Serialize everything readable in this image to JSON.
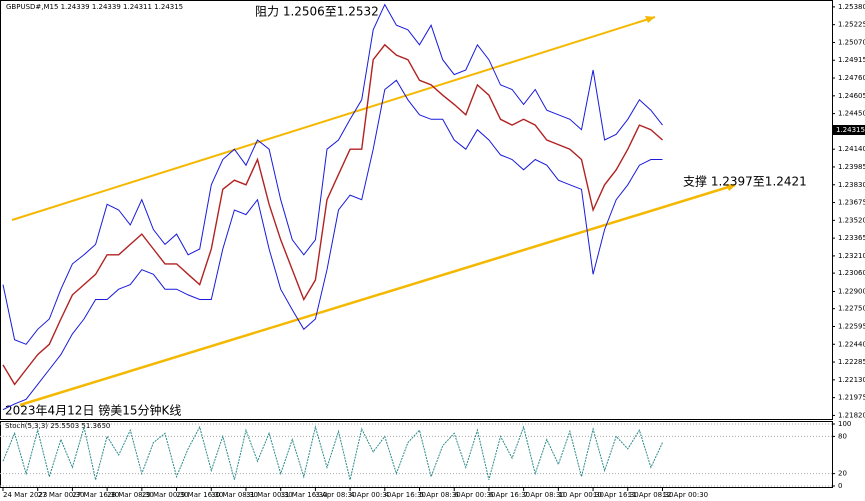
{
  "chart_data": [
    {
      "type": "line",
      "title": "GBPUSD#,M15  1.24339 1.24339 1.24311 1.24315",
      "caption": "2023年4月12日 镑美15分钟K线",
      "annotations": [
        "阻力 1.2506至1.2532",
        "支撑 1.2397至1.2421"
      ],
      "last_price_label": "1.24315",
      "categories": [
        "24 Mar 2023",
        null,
        null,
        "27 Mar 00:30",
        null,
        null,
        "27 Mar 16:30",
        null,
        null,
        "28 Mar 08:30",
        null,
        null,
        "29 Mar 00:30",
        null,
        null,
        "29 Mar 16:30",
        null,
        null,
        "30 Mar 08:30",
        null,
        null,
        "31 Mar 00:30",
        null,
        null,
        "31 Mar 16:30",
        null,
        null,
        "3 Apr 08:30",
        null,
        null,
        "4 Apr 00:30",
        null,
        null,
        "4 Apr 16:30",
        null,
        null,
        "5 Apr 08:30",
        null,
        null,
        "6 Apr 00:30",
        null,
        null,
        "6 Apr 16:30",
        null,
        null,
        "7 Apr 08:30",
        null,
        null,
        "10 Apr 00:30",
        null,
        null,
        "10 Apr 16:30",
        null,
        null,
        "11 Apr 08:30",
        null,
        null,
        "12 Apr 00:30"
      ],
      "series": [
        {
          "name": "GBPUSD#",
          "color": "#b22222",
          "values": [
            1.2226,
            1.2209,
            1.2222,
            1.2235,
            1.2244,
            1.2266,
            1.2287,
            1.2296,
            1.2305,
            1.2322,
            1.2322,
            1.2331,
            1.234,
            1.2327,
            1.2314,
            1.2314,
            1.2305,
            1.2296,
            1.2327,
            1.2379,
            1.2387,
            1.2383,
            1.2405,
            1.2366,
            1.2335,
            1.2309,
            1.2283,
            1.23,
            1.237,
            1.2392,
            1.2414,
            1.2414,
            1.2492,
            1.2505,
            1.2496,
            1.2492,
            1.2474,
            1.247,
            1.2461,
            1.2453,
            1.2444,
            1.247,
            1.2461,
            1.244,
            1.2435,
            1.244,
            1.2435,
            1.2422,
            1.2418,
            1.2414,
            1.2405,
            1.2361,
            1.2383,
            1.2396,
            1.2414,
            1.2435,
            1.2431,
            1.2422
          ]
        },
        {
          "name": "Upper",
          "color": "#1a1adc",
          "values": [
            1.2296,
            1.2248,
            1.2244,
            1.2257,
            1.2266,
            1.2292,
            1.2314,
            1.2322,
            1.2331,
            1.2366,
            1.2361,
            1.2348,
            1.237,
            1.2344,
            1.2331,
            1.234,
            1.2322,
            1.2327,
            1.2383,
            1.2405,
            1.2414,
            1.24,
            1.2422,
            1.2414,
            1.237,
            1.2335,
            1.2322,
            1.2335,
            1.2414,
            1.2422,
            1.244,
            1.2457,
            1.2518,
            1.254,
            1.2522,
            1.2518,
            1.2505,
            1.2522,
            1.2492,
            1.2479,
            1.2483,
            1.2505,
            1.2492,
            1.247,
            1.2466,
            1.2453,
            1.2466,
            1.2448,
            1.2444,
            1.244,
            1.2431,
            1.2483,
            1.2422,
            1.2427,
            1.244,
            1.2457,
            1.2448,
            1.2435
          ]
        },
        {
          "name": "Lower",
          "color": "#1a1adc",
          "values": [
            1.2187,
            1.2192,
            1.2196,
            1.2209,
            1.2222,
            1.2235,
            1.2253,
            1.2266,
            1.2283,
            1.2283,
            1.2292,
            1.2296,
            1.2309,
            1.2305,
            1.2292,
            1.2292,
            1.2287,
            1.2283,
            1.2283,
            1.2327,
            1.2361,
            1.2357,
            1.237,
            1.2327,
            1.2292,
            1.2274,
            1.2257,
            1.2266,
            1.2309,
            1.2361,
            1.2374,
            1.237,
            1.2414,
            1.2466,
            1.2474,
            1.2457,
            1.2444,
            1.244,
            1.244,
            1.2422,
            1.2414,
            1.2431,
            1.2422,
            1.2409,
            1.2405,
            1.2396,
            1.2405,
            1.24,
            1.2387,
            1.2383,
            1.2379,
            1.2305,
            1.2344,
            1.237,
            1.2383,
            1.24,
            1.2405,
            1.2405
          ]
        }
      ],
      "ylim": [
        1.2178,
        1.2544
      ],
      "yticks": [
        {
          "value": 1.2538,
          "label": "1.25380"
        },
        {
          "value": 1.25225,
          "label": "1.25225"
        },
        {
          "value": 1.2507,
          "label": "1.25070"
        },
        {
          "value": 1.24915,
          "label": "1.24915"
        },
        {
          "value": 1.2476,
          "label": "1.24760"
        },
        {
          "value": 1.24605,
          "label": "1.24605"
        },
        {
          "value": 1.2445,
          "label": "1.24450"
        },
        {
          "value": 1.2414,
          "label": "1.24140"
        },
        {
          "value": 1.23985,
          "label": "1.23985"
        },
        {
          "value": 1.2383,
          "label": "1.23830"
        },
        {
          "value": 1.23675,
          "label": "1.23675"
        },
        {
          "value": 1.2352,
          "label": "1.23520"
        },
        {
          "value": 1.23365,
          "label": "1.23365"
        },
        {
          "value": 1.2321,
          "label": "1.23210"
        },
        {
          "value": 1.2306,
          "label": "1.23060"
        },
        {
          "value": 1.229,
          "label": "1.22900"
        },
        {
          "value": 1.2275,
          "label": "1.22750"
        },
        {
          "value": 1.22595,
          "label": "1.22595"
        },
        {
          "value": 1.2244,
          "label": "1.22440"
        },
        {
          "value": 1.22285,
          "label": "1.22285"
        },
        {
          "value": 1.2213,
          "label": "1.22130"
        },
        {
          "value": 1.21975,
          "label": "1.21975"
        },
        {
          "value": 1.2182,
          "label": "1.21820"
        }
      ]
    },
    {
      "type": "line",
      "title": "Stoch(5,3,3) 25.5503 51.3650",
      "series": [
        {
          "name": "Stoch",
          "color": "#2a8a8a",
          "values": [
            40,
            85,
            20,
            90,
            15,
            75,
            30,
            95,
            10,
            80,
            50,
            90,
            20,
            70,
            85,
            15,
            60,
            95,
            25,
            80,
            10,
            90,
            40,
            85,
            20,
            75,
            15,
            95,
            30,
            88,
            10,
            92,
            55,
            80,
            20,
            70,
            90,
            15,
            65,
            85,
            30,
            90,
            10,
            80,
            45,
            95,
            20,
            75,
            35,
            88,
            15,
            92,
            25,
            80,
            60,
            90,
            30,
            70
          ]
        }
      ],
      "ylim": [
        0,
        100
      ],
      "yticks": [
        100,
        80,
        20,
        0
      ]
    }
  ]
}
